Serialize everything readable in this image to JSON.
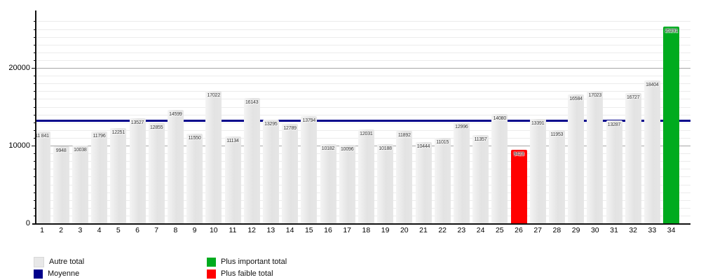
{
  "chart_data": {
    "type": "bar",
    "title": "",
    "xlabel": "",
    "ylabel": "",
    "categories": [
      "1",
      "2",
      "3",
      "4",
      "5",
      "6",
      "7",
      "8",
      "9",
      "10",
      "11",
      "12",
      "13",
      "14",
      "15",
      "16",
      "17",
      "18",
      "19",
      "20",
      "21",
      "22",
      "23",
      "24",
      "25",
      "26",
      "27",
      "28",
      "29",
      "30",
      "31",
      "32",
      "33",
      "34"
    ],
    "values": [
      11841,
      9948,
      10038,
      11796,
      12251,
      13527,
      12855,
      14599,
      11550,
      17022,
      11134,
      16143,
      13295,
      12789,
      13794,
      10182,
      10096,
      12031,
      10188,
      11892,
      10444,
      11015,
      12996,
      11357,
      14080,
      9423,
      13391,
      11953,
      16584,
      17023,
      13287,
      16727,
      18404,
      25291
    ],
    "value_labels": [
      "11 841",
      "9948",
      "10038",
      "11796",
      "12251",
      "13527",
      "12855",
      "14599",
      "11550",
      "17022",
      "11134",
      "16143",
      "13295",
      "12789",
      "13794",
      "10182",
      "10096",
      "12031",
      "10188",
      "11892",
      "10444",
      "11015",
      "12996",
      "11357",
      "14080",
      "9423",
      "13391",
      "11953",
      "16584",
      "17023",
      "13287",
      "16727",
      "18404",
      "25291"
    ],
    "y_ticks": [
      0,
      10000,
      20000
    ],
    "y_tick_labels": [
      "0",
      "10000",
      "20000"
    ],
    "ylim": [
      0,
      27350
    ],
    "grid": "horizontal minor lines every 1000, darker major lines at 10000 and 20000, drawn behind bars",
    "legend_position": "bottom",
    "moyenne_line_value": 13204,
    "special_bars": {
      "plus_important": {
        "category": "34",
        "value": 25291
      },
      "plus_faible": {
        "category": "26",
        "value": 9423
      }
    }
  },
  "legend": {
    "items": [
      {
        "label": "Autre total",
        "color": "#e8e8e8"
      },
      {
        "label": "Moyenne",
        "color": "#00008b"
      },
      {
        "label": "Plus important total",
        "color": "#00ab1e"
      },
      {
        "label": "Plus faible total",
        "color": "#ff0000"
      }
    ]
  },
  "colors": {
    "bar_default": "#e6e6e6",
    "bar_highest": "#00ab1e",
    "bar_lowest": "#ff0000",
    "average_line": "#00008b",
    "grid_minor": "#ececec",
    "grid_major": "#a6a6a6",
    "axis": "#111111",
    "bar_value_text": "#333333"
  }
}
